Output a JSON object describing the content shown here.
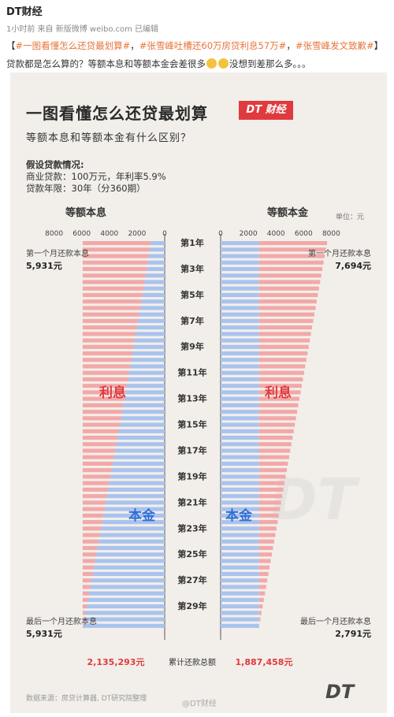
{
  "post": {
    "author": "DT财经",
    "meta": "1小时前  来自 新版微博 weibo.com 已编辑",
    "tag1": "#一图看懂怎么还贷最划算#",
    "tag2": "#张雪峰吐槽还60万房贷利息57万#",
    "tag3": "#张雪峰发文致歉#",
    "body": "贷款都是怎么算的？等额本息和等额本金会差很多",
    "body_tail": "没想到差那么多。。。"
  },
  "infographic": {
    "title": "一图看懂怎么还贷最划算",
    "brand": "DT 财经",
    "subtitle": "等额本息和等额本金有什么区别？",
    "assume_head": "假设贷款情况:",
    "assume_line1": "商业贷款：100万元，年利率5.9%",
    "assume_line2": "贷款年限：30年（分360期）",
    "unit": "单位：元",
    "source": "数据来源：房贷计算器, DT研究院整理",
    "watermark": "@DT财经",
    "logo": "DT"
  },
  "chart_data": {
    "type": "bar",
    "orientation": "horizontal-mirrored",
    "periods": 360,
    "year_labels": [
      "第1年",
      "第3年",
      "第5年",
      "第7年",
      "第9年",
      "第11年",
      "第13年",
      "第15年",
      "第17年",
      "第19年",
      "第21年",
      "第23年",
      "第25年",
      "第27年",
      "第29年"
    ],
    "left": {
      "name": "等额本息",
      "ticks": [
        "8000",
        "6000",
        "4000",
        "2000",
        "0"
      ],
      "xlim": [
        0,
        8000
      ],
      "payment_first": 5931,
      "payment_last": 5931,
      "principal_first": 1014,
      "principal_last": 5902,
      "first_label": "第一个月还款本息",
      "first_value": "5,931元",
      "last_label": "最后一个月还款本息",
      "last_value": "5,931元",
      "total": "2,135,293元"
    },
    "right": {
      "name": "等额本金",
      "ticks": [
        "0",
        "2000",
        "4000",
        "6000",
        "8000"
      ],
      "xlim": [
        0,
        8000
      ],
      "payment_first": 7694,
      "payment_last": 2791,
      "principal_constant": 2778,
      "first_label": "第一个月还款本息",
      "first_value": "7,694元",
      "last_label": "最后一个月还款本息",
      "last_value": "2,791元",
      "total": "1,887,458元"
    },
    "interest_label": "利息",
    "principal_label": "本金",
    "total_label": "累计还款总额",
    "colors": {
      "interest": "#f3a8a8",
      "principal": "#a9c3ee",
      "highlight": "#e03a3e",
      "principal_text": "#2f6fd6"
    }
  }
}
